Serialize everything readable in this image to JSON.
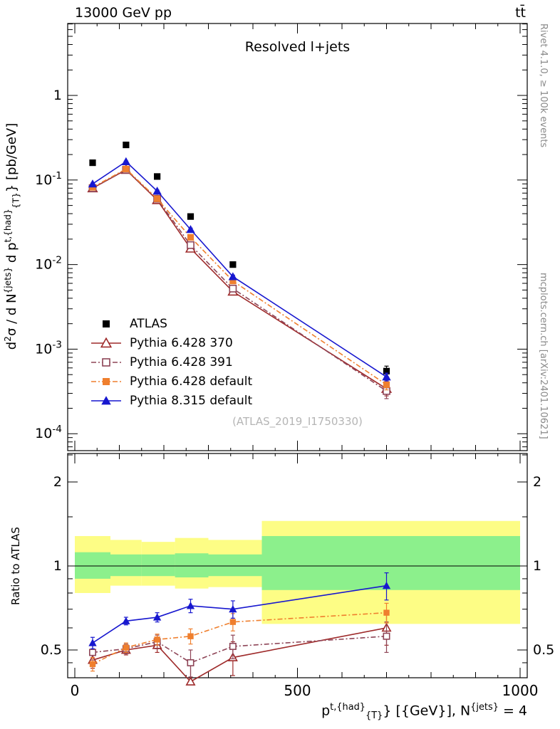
{
  "header": {
    "left": "13000 GeV pp",
    "right": "tt̄"
  },
  "panel_title": "Resolved l+jets",
  "watermark": "(ATLAS_2019_I1750330)",
  "side_notes": {
    "top": "Rivet 4.1.0, ≥ 100k events",
    "bottom": "mcplots.cern.ch [arXiv:2401.10621]"
  },
  "axes": {
    "ratio_label": "Ratio to ATLAS",
    "y": {
      "p1": "d",
      "s1": "2",
      "p2": "σ / d N",
      "s2": "{jets}",
      "p3": " d p",
      "s3": "t,{had}",
      "b1": "{T}",
      "p4": "} [pb/GeV]"
    },
    "x": {
      "p1": "p",
      "s1": "t,{had}",
      "b1": "{T}",
      "p2": "} [{GeV}], N",
      "s2": "{jets}",
      "p3": " = 4"
    }
  },
  "chart_data": {
    "type": "line",
    "title": "Resolved l+jets",
    "xlabel": "p_T^{t,had} [GeV], N_jets = 4",
    "ylabel": "d^2(sigma) / dN^jets dp_T^{t,had} [pb/GeV]",
    "x_range": [
      0,
      1000
    ],
    "xticks": [
      0,
      500,
      1000
    ],
    "x": [
      40,
      115,
      185,
      260,
      355,
      700
    ],
    "main": {
      "yscale": "log",
      "ylim": [
        6.3e-05,
        7.1
      ],
      "yticks": [
        {
          "v": 1,
          "label": "1"
        },
        {
          "v": 0.1,
          "label": "10^-1"
        },
        {
          "v": 0.01,
          "label": "10^-2"
        },
        {
          "v": 0.001,
          "label": "10^-3"
        },
        {
          "v": 0.0001,
          "label": "10^-4"
        }
      ]
    },
    "ratio": {
      "yscale": "log",
      "ylim": [
        0.4,
        2.53
      ],
      "ref_line": 1,
      "yticks": [
        {
          "v": 0.5,
          "label": "0.5"
        },
        {
          "v": 1,
          "label": "1"
        },
        {
          "v": 2,
          "label": "2"
        }
      ],
      "band_colors": {
        "yellow": "#fdfd85",
        "green": "#8cf08c"
      },
      "bands": {
        "edges": [
          0,
          80,
          150,
          225,
          300,
          420,
          1000
        ],
        "yellow": [
          [
            0.8,
            1.28
          ],
          [
            0.85,
            1.24
          ],
          [
            0.85,
            1.22
          ],
          [
            0.83,
            1.26
          ],
          [
            0.84,
            1.24
          ],
          [
            0.62,
            1.45
          ]
        ],
        "green": [
          [
            0.9,
            1.12
          ],
          [
            0.92,
            1.1
          ],
          [
            0.92,
            1.1
          ],
          [
            0.91,
            1.11
          ],
          [
            0.92,
            1.1
          ],
          [
            0.82,
            1.28
          ]
        ]
      }
    },
    "series": [
      {
        "name": "ATLAS",
        "color": "#000000",
        "marker": "square-filled",
        "line": "none",
        "y": [
          0.16,
          0.26,
          0.11,
          0.037,
          0.01,
          0.00055
        ],
        "yerr": [
          0.006,
          0.009,
          0.004,
          0.0015,
          0.0005,
          8e-05
        ]
      },
      {
        "name": "Pythia 6.428 370",
        "color": "#9e2a2a",
        "marker": "triangle-open",
        "line": "solid",
        "y": [
          0.08,
          0.132,
          0.058,
          0.0155,
          0.0048,
          0.00034
        ],
        "yerr": [
          0.003,
          0.004,
          0.002,
          0.0012,
          0.0004,
          6e-05
        ],
        "ratio": [
          0.46,
          0.5,
          0.52,
          0.385,
          0.47,
          0.6
        ],
        "ratio_err": [
          0.03,
          0.02,
          0.03,
          0.06,
          0.065,
          0.08
        ]
      },
      {
        "name": "Pythia 6.428 391",
        "color": "#8e4557",
        "marker": "square-open",
        "line": "dashdot",
        "y": [
          0.08,
          0.132,
          0.06,
          0.017,
          0.0052,
          0.00032
        ],
        "yerr": [
          0.003,
          0.004,
          0.002,
          0.0012,
          0.0004,
          6e-05
        ],
        "ratio": [
          0.49,
          0.505,
          0.535,
          0.45,
          0.515,
          0.56
        ],
        "ratio_err": [
          0.03,
          0.02,
          0.03,
          0.05,
          0.05,
          0.07
        ]
      },
      {
        "name": "Pythia 6.428 default",
        "color": "#ef7f2e",
        "marker": "square-filled",
        "line": "dashdot",
        "y": [
          0.082,
          0.135,
          0.06,
          0.021,
          0.0064,
          0.00038
        ],
        "yerr": [
          0.003,
          0.004,
          0.002,
          0.001,
          0.0003,
          5e-05
        ],
        "ratio": [
          0.445,
          0.51,
          0.545,
          0.56,
          0.63,
          0.68
        ],
        "ratio_err": [
          0.025,
          0.02,
          0.025,
          0.035,
          0.045,
          0.055
        ]
      },
      {
        "name": "Pythia 8.315 default",
        "color": "#1717cf",
        "marker": "triangle-filled",
        "line": "solid",
        "y": [
          0.09,
          0.165,
          0.074,
          0.026,
          0.0072,
          0.00047
        ],
        "yerr": [
          0.002,
          0.003,
          0.002,
          0.001,
          0.0003,
          5e-05
        ],
        "ratio": [
          0.53,
          0.635,
          0.655,
          0.72,
          0.7,
          0.85
        ],
        "ratio_err": [
          0.025,
          0.02,
          0.025,
          0.04,
          0.05,
          0.095
        ]
      }
    ]
  }
}
